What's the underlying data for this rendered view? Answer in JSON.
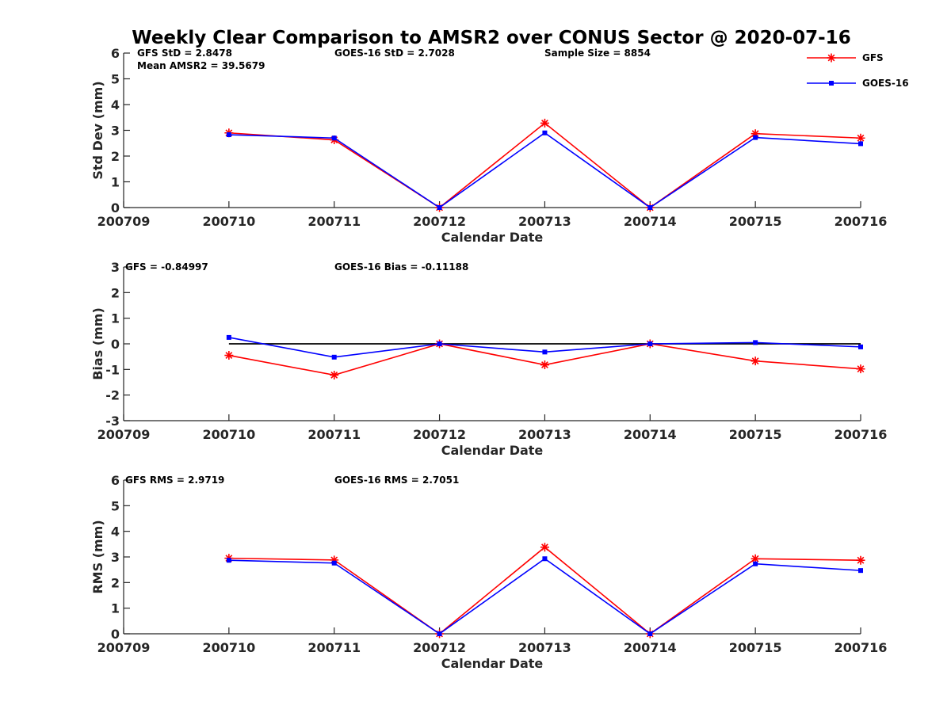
{
  "title": "Weekly Clear Comparison to AMSR2 over CONUS Sector @ 2020-07-16",
  "colors": {
    "gfs": "#ff0000",
    "goes": "#0000ff",
    "zero_line": "#000000"
  },
  "legend": {
    "items": [
      "GFS",
      "GOES-16"
    ],
    "placement": "top-right"
  },
  "chart_data": [
    {
      "type": "line",
      "ylabel": "Std Dev (mm)",
      "xlabel": "Calendar Date",
      "ylim": [
        0,
        6
      ],
      "yticks": [
        "0",
        "1",
        "2",
        "3",
        "4",
        "5",
        "6"
      ],
      "categories": [
        "200709",
        "200710",
        "200711",
        "200712",
        "200713",
        "200714",
        "200715",
        "200716"
      ],
      "series": [
        {
          "name": "GFS",
          "marker": "asterisk",
          "values": [
            null,
            2.9,
            2.63,
            0.0,
            3.28,
            0.0,
            2.87,
            2.7
          ]
        },
        {
          "name": "GOES-16",
          "marker": "square",
          "values": [
            null,
            2.83,
            2.7,
            0.0,
            2.9,
            0.0,
            2.72,
            2.48
          ]
        }
      ],
      "annotations": [
        "GFS StD = 2.8478",
        "Mean AMSR2 = 39.5679",
        "GOES-16 StD = 2.7028",
        "Sample Size = 8854"
      ]
    },
    {
      "type": "line",
      "ylabel": "Bias (mm)",
      "xlabel": "Calendar Date",
      "ylim": [
        -3,
        3
      ],
      "yticks": [
        "-3",
        "-2",
        "-1",
        "0",
        "1",
        "2",
        "3"
      ],
      "categories": [
        "200709",
        "200710",
        "200711",
        "200712",
        "200713",
        "200714",
        "200715",
        "200716"
      ],
      "reference_line": 0,
      "series": [
        {
          "name": "GFS",
          "marker": "asterisk",
          "values": [
            null,
            -0.45,
            -1.22,
            0.0,
            -0.82,
            0.0,
            -0.67,
            -0.98
          ]
        },
        {
          "name": "GOES-16",
          "marker": "square",
          "values": [
            null,
            0.25,
            -0.52,
            0.0,
            -0.32,
            0.0,
            0.05,
            -0.12
          ]
        }
      ],
      "annotations": [
        "GFS = -0.84997",
        "GOES-16 Bias  = -0.11188"
      ]
    },
    {
      "type": "line",
      "ylabel": "RMS (mm)",
      "xlabel": "Calendar Date",
      "ylim": [
        0,
        6
      ],
      "yticks": [
        "0",
        "1",
        "2",
        "3",
        "4",
        "5",
        "6"
      ],
      "categories": [
        "200709",
        "200710",
        "200711",
        "200712",
        "200713",
        "200714",
        "200715",
        "200716"
      ],
      "series": [
        {
          "name": "GFS",
          "marker": "asterisk",
          "values": [
            null,
            2.95,
            2.88,
            0.0,
            3.38,
            0.0,
            2.93,
            2.87
          ]
        },
        {
          "name": "GOES-16",
          "marker": "square",
          "values": [
            null,
            2.87,
            2.76,
            0.0,
            2.93,
            0.0,
            2.73,
            2.47
          ]
        }
      ],
      "annotations": [
        "GFS RMS = 2.9719",
        "GOES-16 RMS = 2.7051"
      ]
    }
  ]
}
